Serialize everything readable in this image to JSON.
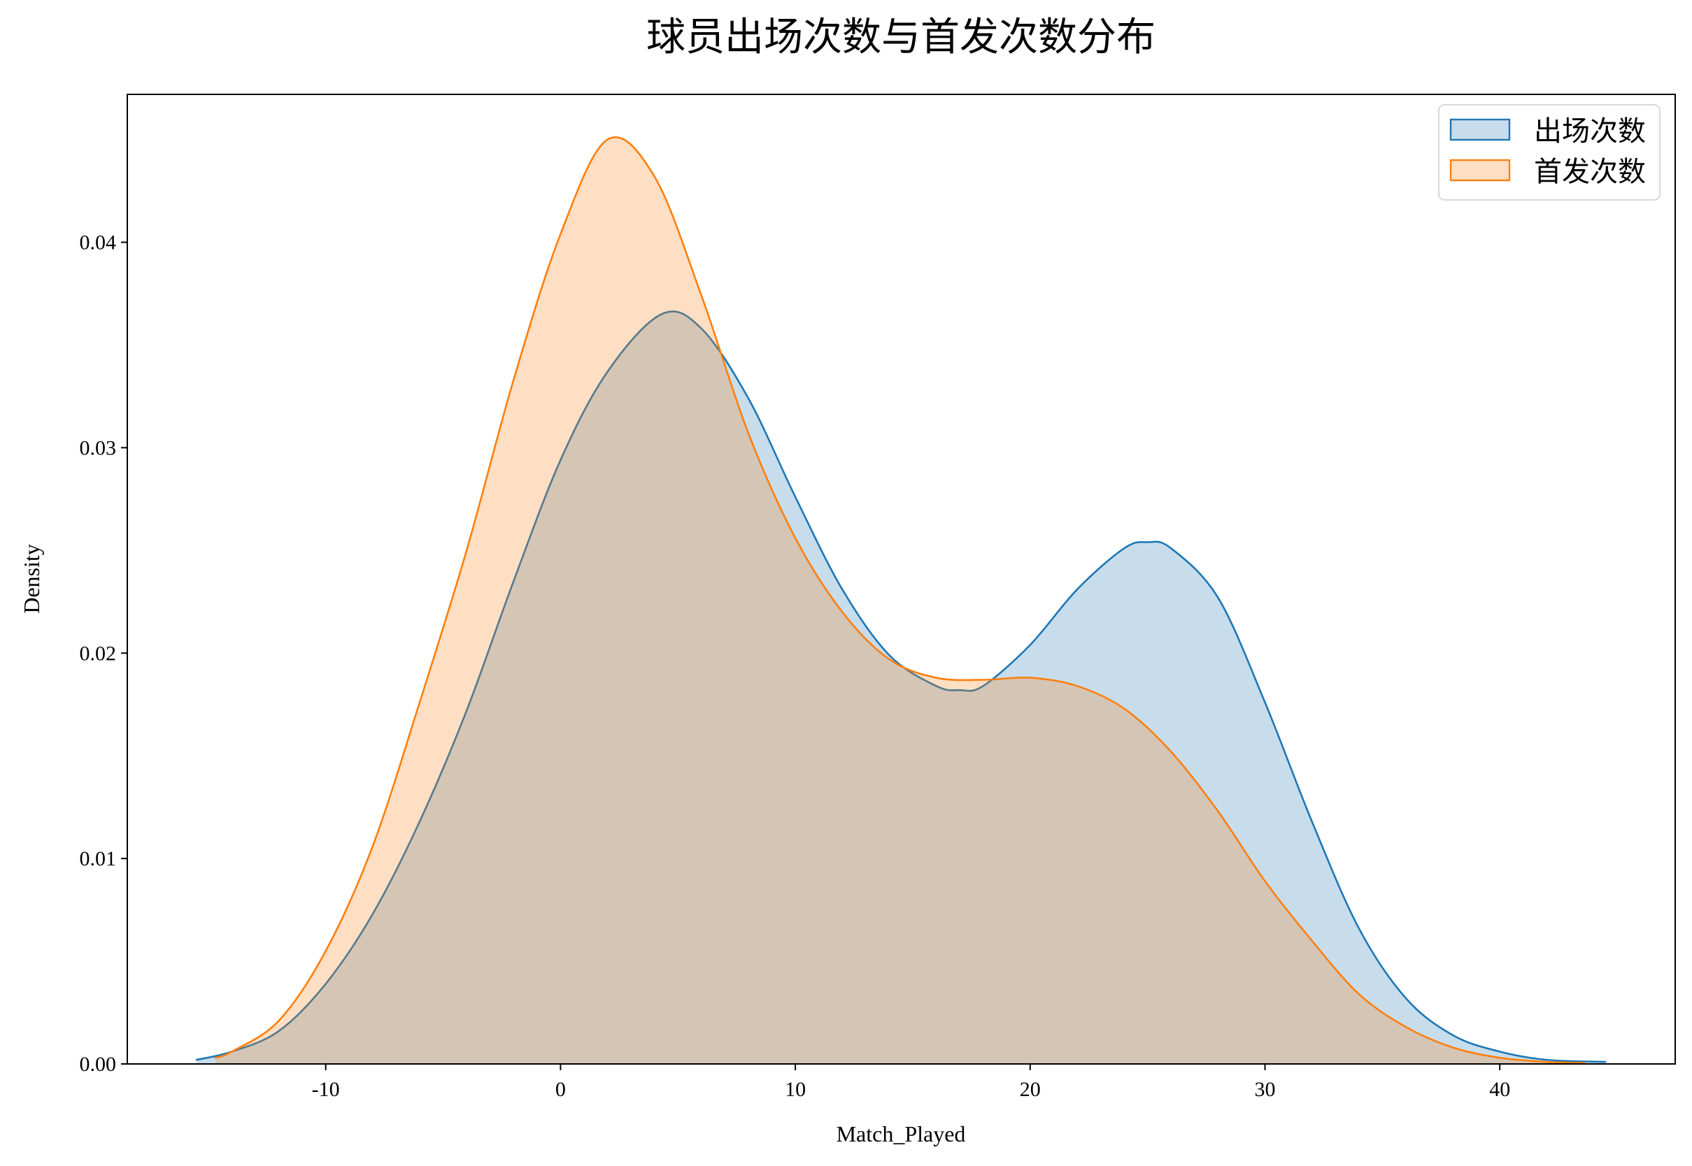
{
  "chart_data": {
    "type": "area",
    "title": "球员出场次数与首发次数分布",
    "xlabel": "Match_Played",
    "ylabel": "Density",
    "xlim": [
      -18.45,
      47.47
    ],
    "ylim": [
      0,
      0.0472
    ],
    "xticks": [
      -10,
      0,
      10,
      20,
      30,
      40
    ],
    "xtick_labels": [
      "-10",
      "0",
      "10",
      "20",
      "30",
      "40"
    ],
    "yticks": [
      0,
      0.01,
      0.02,
      0.03,
      0.04
    ],
    "ytick_labels": [
      "0.00",
      "0.01",
      "0.02",
      "0.03",
      "0.04"
    ],
    "grid": false,
    "legend": "top-right",
    "series": [
      {
        "name": "出场次数",
        "color": "#1f77b4",
        "x": [
          -15.5,
          -14,
          -12,
          -10,
          -8,
          -6,
          -4,
          -2,
          0,
          2,
          4.3,
          6,
          8,
          10,
          12,
          14,
          16,
          17,
          18,
          20,
          22,
          24,
          25,
          26,
          28,
          30,
          32,
          34,
          36,
          38,
          40,
          42,
          44.5
        ],
        "y": [
          0.0002,
          0.0006,
          0.0016,
          0.0039,
          0.0073,
          0.0118,
          0.0172,
          0.0235,
          0.0294,
          0.0337,
          0.0365,
          0.0358,
          0.0324,
          0.0276,
          0.0231,
          0.0199,
          0.0184,
          0.0182,
          0.0184,
          0.0204,
          0.0231,
          0.0251,
          0.0254,
          0.0251,
          0.0227,
          0.0176,
          0.0118,
          0.0066,
          0.0032,
          0.0014,
          0.0006,
          0.0002,
          0.0001
        ]
      },
      {
        "name": "首发次数",
        "color": "#ff7f0e",
        "x": [
          -14.7,
          -14,
          -12,
          -10,
          -8,
          -6,
          -4,
          -2,
          0,
          2,
          4,
          6,
          8,
          10,
          12,
          14,
          16,
          18,
          20,
          22,
          24,
          26,
          28,
          30,
          32,
          34,
          36,
          38,
          40,
          42,
          43.6
        ],
        "y": [
          0.0003,
          0.0006,
          0.0021,
          0.0055,
          0.0106,
          0.0176,
          0.025,
          0.0333,
          0.0404,
          0.045,
          0.0432,
          0.0374,
          0.0307,
          0.0256,
          0.022,
          0.0197,
          0.0188,
          0.0187,
          0.0188,
          0.0184,
          0.0173,
          0.0152,
          0.0123,
          0.0089,
          0.006,
          0.0034,
          0.0018,
          0.0008,
          0.0003,
          0.0001,
          5e-05
        ]
      }
    ]
  }
}
